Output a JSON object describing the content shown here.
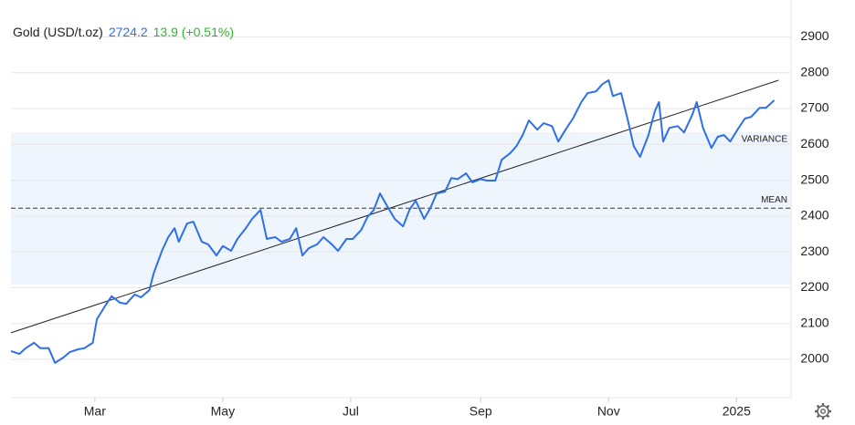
{
  "chart_data": {
    "type": "line",
    "title": "Gold (USD/t.oz)",
    "last_value": "2724.2",
    "change": "13.9 (+0.51%)",
    "series": [
      {
        "name": "Gold",
        "color": "#2f6fe8",
        "x": [
          -40,
          -36,
          -33,
          -29,
          -26,
          -22,
          -19,
          -15,
          -12,
          -8,
          -5,
          -1,
          1,
          5,
          8,
          12,
          15,
          19,
          22,
          26,
          28,
          32,
          35,
          38,
          40,
          44,
          47,
          51,
          54,
          58,
          61,
          65,
          68,
          72,
          75,
          79,
          82,
          86,
          89,
          93,
          96,
          99,
          102,
          106,
          109,
          113,
          116,
          120,
          123,
          127,
          130,
          133,
          136,
          140,
          143,
          147,
          150,
          153,
          157,
          160,
          163,
          167,
          170,
          173,
          177,
          180,
          184,
          187,
          191,
          194,
          198,
          201,
          204,
          207,
          211,
          214,
          218,
          221,
          225,
          228,
          232,
          235,
          239,
          242,
          245,
          247,
          251,
          254,
          257,
          260,
          264,
          267,
          269,
          271,
          274,
          278,
          281,
          285,
          287,
          290,
          294,
          297,
          300,
          303,
          307,
          310,
          313,
          317,
          320,
          324
        ],
        "values": [
          2023,
          2015,
          2031,
          2046,
          2031,
          2031,
          1990,
          2005,
          2020,
          2028,
          2031,
          2046,
          2112,
          2150,
          2176,
          2158,
          2155,
          2181,
          2173,
          2193,
          2239,
          2303,
          2341,
          2366,
          2328,
          2379,
          2384,
          2328,
          2321,
          2290,
          2316,
          2303,
          2336,
          2366,
          2392,
          2417,
          2336,
          2341,
          2328,
          2336,
          2366,
          2290,
          2310,
          2321,
          2341,
          2321,
          2303,
          2336,
          2336,
          2361,
          2397,
          2417,
          2463,
          2422,
          2392,
          2371,
          2417,
          2443,
          2392,
          2422,
          2463,
          2468,
          2506,
          2503,
          2519,
          2494,
          2503,
          2499,
          2499,
          2557,
          2575,
          2595,
          2626,
          2667,
          2641,
          2659,
          2651,
          2608,
          2646,
          2672,
          2718,
          2743,
          2748,
          2768,
          2779,
          2735,
          2743,
          2672,
          2595,
          2565,
          2626,
          2692,
          2718,
          2608,
          2646,
          2651,
          2633,
          2684,
          2718,
          2646,
          2590,
          2621,
          2626,
          2608,
          2646,
          2672,
          2677,
          2702,
          2702,
          2723
        ]
      }
    ],
    "trend_line": {
      "x": [
        -40,
        326
      ],
      "values": [
        2074,
        2779
      ]
    },
    "mean": {
      "label": "MEAN",
      "value": 2422
    },
    "variance": {
      "label": "VARIANCE",
      "values": [
        2209,
        2634
      ]
    },
    "xlim": [
      -40,
      332
    ],
    "xticks": [
      {
        "value": 0,
        "label": "Mar"
      },
      {
        "value": 61,
        "label": "May"
      },
      {
        "value": 122,
        "label": "Jul"
      },
      {
        "value": 184,
        "label": "Sep"
      },
      {
        "value": 245,
        "label": "Nov"
      },
      {
        "value": 306,
        "label": "2025"
      }
    ],
    "ylim": [
      1893,
      3003
    ],
    "yticks": [
      2000,
      2100,
      2200,
      2300,
      2400,
      2500,
      2600,
      2700,
      2800,
      2900
    ],
    "grid": true
  }
}
